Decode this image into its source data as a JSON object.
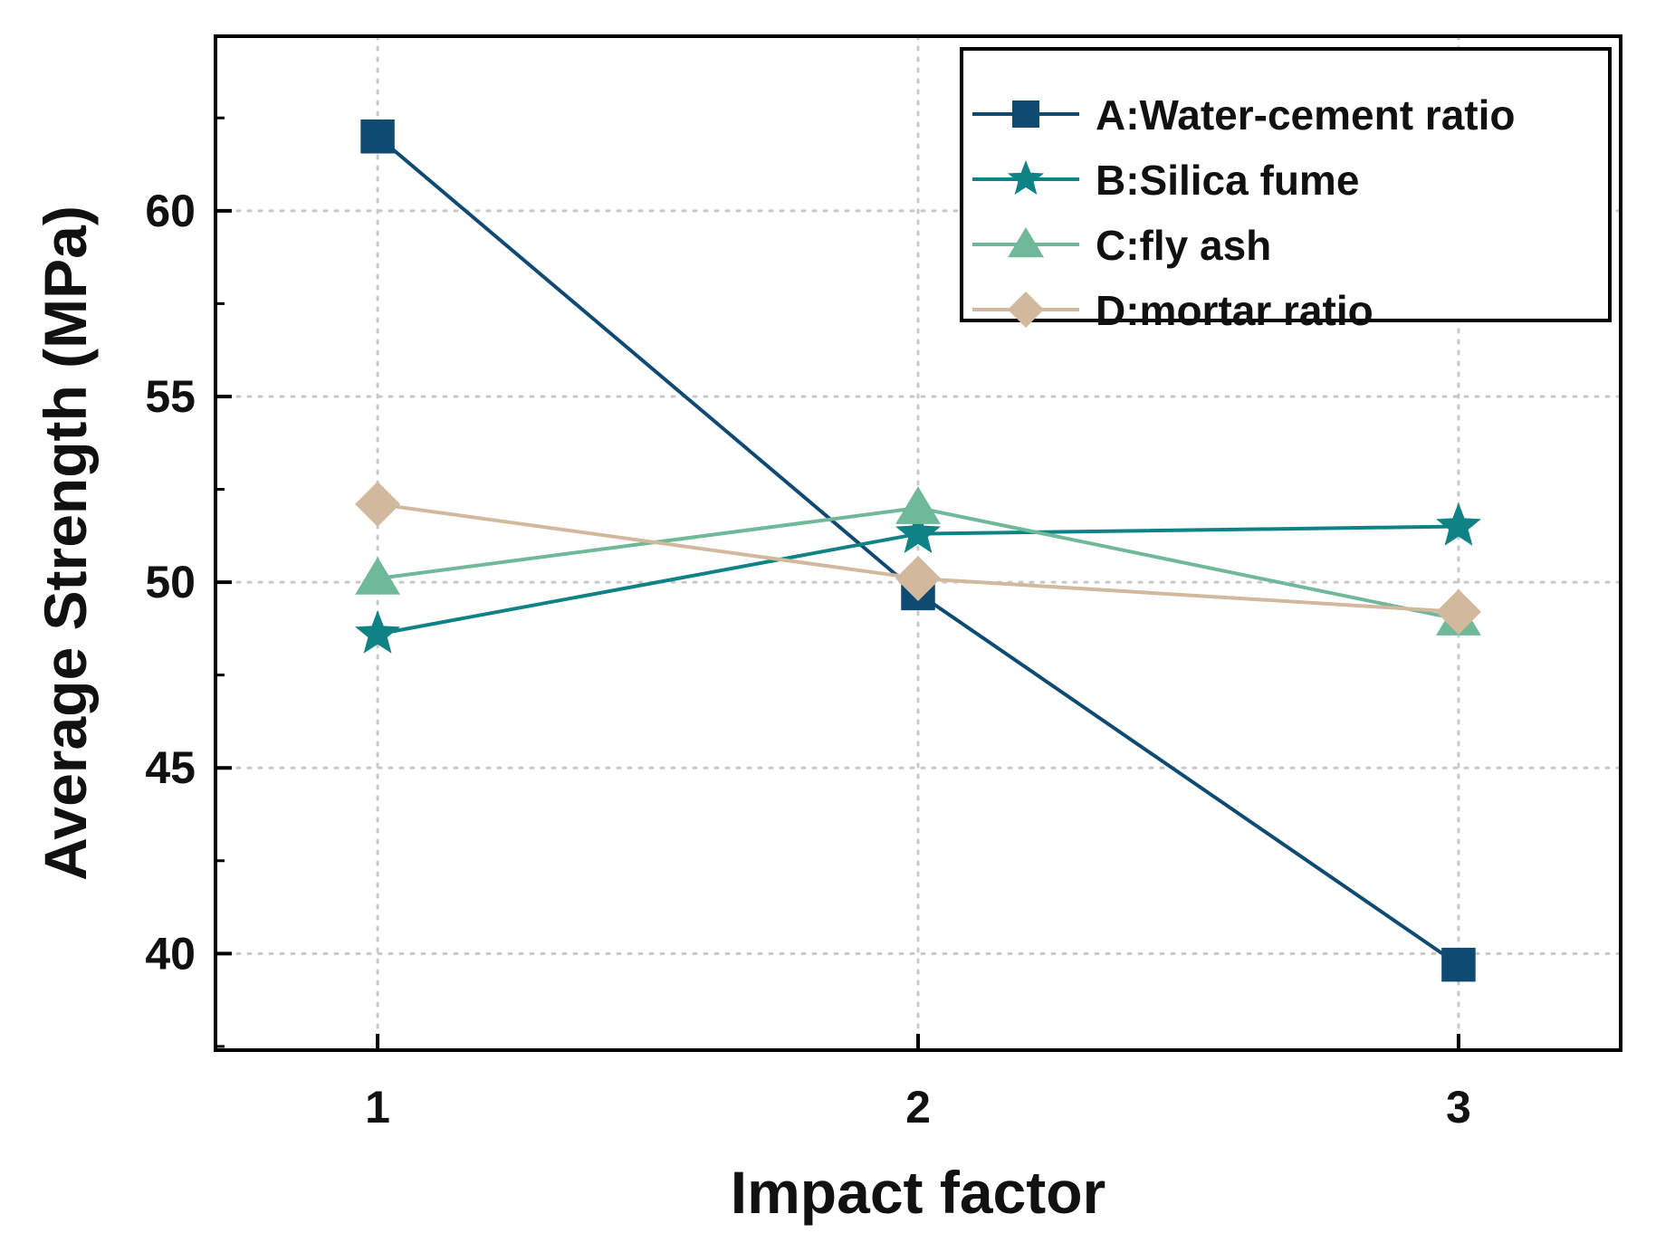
{
  "chart_data": {
    "type": "line",
    "title": "",
    "xlabel": "Impact factor",
    "ylabel": "Average Strength (MPa)",
    "categories": [
      1,
      2,
      3
    ],
    "xlim": [
      0.7,
      3.3
    ],
    "ylim": [
      37.4,
      64.7
    ],
    "yticks": [
      40,
      45,
      50,
      55,
      60
    ],
    "grid": true,
    "legend_position": "top-right",
    "series": [
      {
        "name": "A:Water-cement ratio",
        "values": [
          62.0,
          49.7,
          39.7
        ],
        "color": "#0f4a73",
        "marker": "square"
      },
      {
        "name": "B:Silica fume",
        "values": [
          48.6,
          51.3,
          51.5
        ],
        "color": "#0f8286",
        "marker": "star"
      },
      {
        "name": "C:fly ash",
        "values": [
          50.1,
          52.0,
          49.0
        ],
        "color": "#6fb89a",
        "marker": "triangle"
      },
      {
        "name": "D:mortar ratio",
        "values": [
          52.1,
          50.1,
          49.2
        ],
        "color": "#d2b89c",
        "marker": "diamond"
      }
    ]
  }
}
